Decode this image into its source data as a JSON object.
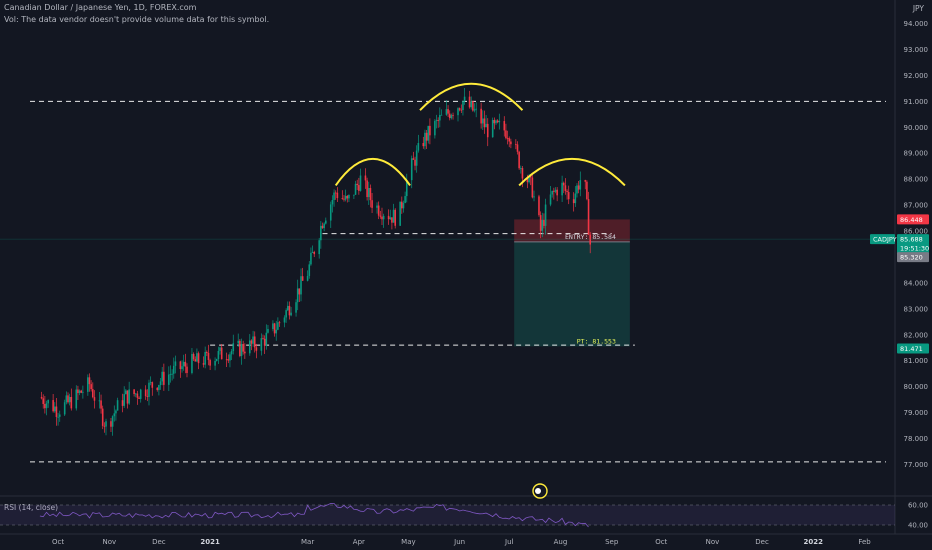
{
  "header": {
    "symbol_title": "Canadian Dollar / Japanese Yen, 1D, FOREX.com",
    "volume_note": "Vol: The data vendor doesn't provide volume data for this symbol."
  },
  "axis": {
    "currency": "JPY"
  },
  "rsi_label": "RSI (14, close)",
  "chart_data": {
    "type": "candlestick",
    "symbol": "CADJPY",
    "ylim": [
      76.4,
      94.6
    ],
    "y_ticks": [
      "94.000",
      "93.000",
      "92.000",
      "91.000",
      "90.000",
      "89.000",
      "88.000",
      "87.000",
      "86.000",
      "85.000",
      "84.000",
      "83.000",
      "82.000",
      "81.000",
      "80.000",
      "79.000",
      "78.000",
      "77.000"
    ],
    "x_ticks": [
      {
        "label": "Oct",
        "bold": false
      },
      {
        "label": "Nov",
        "bold": false
      },
      {
        "label": "Dec",
        "bold": false
      },
      {
        "label": "2021",
        "bold": true
      },
      {
        "label": "Mar",
        "bold": false
      },
      {
        "label": "Apr",
        "bold": false
      },
      {
        "label": "May",
        "bold": false
      },
      {
        "label": "Jun",
        "bold": false
      },
      {
        "label": "Jul",
        "bold": false
      },
      {
        "label": "Aug",
        "bold": false
      },
      {
        "label": "Sep",
        "bold": false
      },
      {
        "label": "Oct",
        "bold": false
      },
      {
        "label": "Nov",
        "bold": false
      },
      {
        "label": "Dec",
        "bold": false
      },
      {
        "label": "2022",
        "bold": true
      },
      {
        "label": "Feb",
        "bold": false
      }
    ],
    "close_path": [
      [
        "2020-09-20",
        79.6
      ],
      [
        "2020-10-01",
        79.1
      ],
      [
        "2020-10-10",
        79.5
      ],
      [
        "2020-10-20",
        80.1
      ],
      [
        "2020-10-30",
        78.5
      ],
      [
        "2020-11-10",
        79.6
      ],
      [
        "2020-11-20",
        79.8
      ],
      [
        "2020-12-01",
        80.2
      ],
      [
        "2020-12-10",
        80.6
      ],
      [
        "2020-12-20",
        80.9
      ],
      [
        "2021-01-01",
        81.1
      ],
      [
        "2021-01-15",
        81.4
      ],
      [
        "2021-02-01",
        81.7
      ],
      [
        "2021-02-10",
        82.3
      ],
      [
        "2021-02-20",
        83.3
      ],
      [
        "2021-03-01",
        84.4
      ],
      [
        "2021-03-10",
        86.4
      ],
      [
        "2021-03-18",
        87.5
      ],
      [
        "2021-03-25",
        87.1
      ],
      [
        "2021-04-02",
        88.0
      ],
      [
        "2021-04-10",
        87.0
      ],
      [
        "2021-04-20",
        86.6
      ],
      [
        "2021-04-25",
        86.5
      ],
      [
        "2021-05-01",
        88.2
      ],
      [
        "2021-05-10",
        89.5
      ],
      [
        "2021-05-20",
        90.3
      ],
      [
        "2021-05-28",
        90.7
      ],
      [
        "2021-06-03",
        91.0
      ],
      [
        "2021-06-10",
        90.6
      ],
      [
        "2021-06-18",
        89.9
      ],
      [
        "2021-06-25",
        90.0
      ],
      [
        "2021-07-01",
        89.8
      ],
      [
        "2021-07-08",
        88.5
      ],
      [
        "2021-07-15",
        87.6
      ],
      [
        "2021-07-20",
        86.0
      ],
      [
        "2021-07-25",
        87.2
      ],
      [
        "2021-08-01",
        87.8
      ],
      [
        "2021-08-08",
        87.2
      ],
      [
        "2021-08-15",
        88.3
      ],
      [
        "2021-08-19",
        85.5
      ]
    ],
    "levels": [
      {
        "price": 91.0,
        "from": "2020-09-14",
        "to": "2022-02-14"
      },
      {
        "price": 85.9,
        "from": "2021-03-10",
        "to": "2021-09-01"
      },
      {
        "price": 81.6,
        "from": "2021-01-01",
        "to": "2021-09-15"
      },
      {
        "price": 77.1,
        "from": "2020-09-14",
        "to": "2022-02-14"
      }
    ],
    "entry_label": "ENTRY: 85.584",
    "target_label": "PT: 81.553",
    "position": {
      "start": "2021-07-04",
      "end": "2021-09-12",
      "stop": 86.448,
      "entry": 85.584,
      "target": 81.553
    },
    "arcs": [
      {
        "start": "2021-03-18",
        "end": "2021-05-02",
        "peak": 88.8
      },
      {
        "start": "2021-05-08",
        "end": "2021-07-09",
        "peak": 91.7
      },
      {
        "start": "2021-07-07",
        "end": "2021-09-09",
        "peak": 88.8
      }
    ],
    "price_tags": [
      {
        "text": "86.448",
        "price": 86.448,
        "color": "#f23645"
      },
      {
        "text": "CADJPY",
        "price": 85.688,
        "color": "#089981"
      },
      {
        "text": "85.688",
        "price": 85.688,
        "color": "#089981"
      },
      {
        "text": "19:51:30",
        "price": 85.46,
        "color": "#089981"
      },
      {
        "text": "85.320",
        "price": 85.23,
        "color": "#787b86"
      },
      {
        "text": "81.471",
        "price": 81.471,
        "color": "#089981"
      }
    ],
    "rsi": {
      "ylim": [
        35,
        65
      ],
      "ticks": [
        "60.00",
        "40.00"
      ],
      "overbought": 60,
      "oversold": 40,
      "values": [
        [
          "2021-03-01",
          57
        ],
        [
          "2021-03-20",
          60
        ],
        [
          "2021-04-10",
          53
        ],
        [
          "2021-05-01",
          55
        ],
        [
          "2021-05-20",
          58
        ],
        [
          "2021-06-05",
          56
        ],
        [
          "2021-06-25",
          50
        ],
        [
          "2021-07-15",
          46
        ],
        [
          "2021-08-01",
          44
        ],
        [
          "2021-08-19",
          39
        ]
      ]
    },
    "colors": {
      "up": "#089981",
      "down": "#f23645",
      "arc": "#ffeb3b",
      "stop_zone": "#5b2029",
      "target_zone": "#143a3c",
      "rsi": "#7e57c2"
    }
  }
}
